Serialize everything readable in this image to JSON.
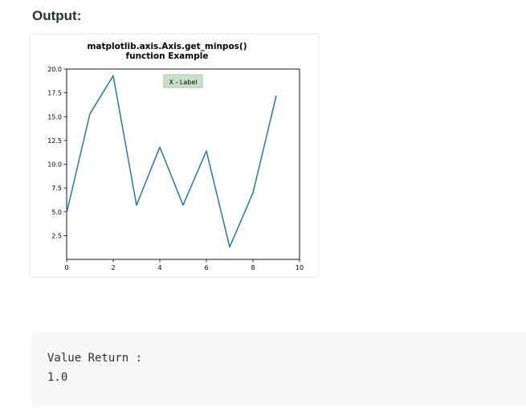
{
  "page": {
    "heading": "Output:",
    "output_lines": [
      "Value Return :",
      "1.0"
    ]
  },
  "chart_data": {
    "type": "line",
    "title_lines": [
      "matplotlib.axis.Axis.get_minpos()",
      "function Example"
    ],
    "xlim": [
      0,
      10
    ],
    "ylim": [
      0,
      20
    ],
    "x_ticks": [
      0,
      2,
      4,
      6,
      8,
      10
    ],
    "y_ticks": [
      2.5,
      5.0,
      7.5,
      10.0,
      12.5,
      15.0,
      17.5,
      20.0
    ],
    "series": [
      {
        "x": [
          0,
          1,
          2,
          3,
          4,
          5,
          6,
          7,
          8,
          9
        ],
        "values": [
          4.9,
          15.3,
          19.3,
          5.7,
          11.8,
          5.7,
          11.4,
          1.3,
          7.0,
          17.2
        ]
      }
    ],
    "annotation": "X - Label",
    "colors": {
      "line": "#1f77b4",
      "annotation_bg": "#c8dfc8",
      "annotation_border": "#98bf98"
    }
  }
}
